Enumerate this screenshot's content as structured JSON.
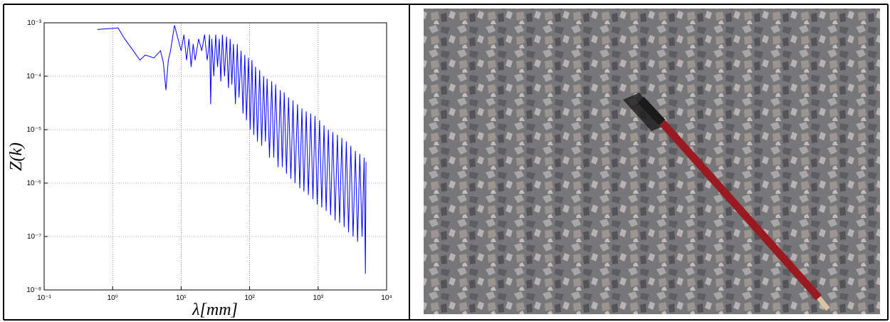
{
  "chart_data": {
    "type": "line",
    "x_label": "λ[mm]",
    "y_label": "Z(k)",
    "log_x": true,
    "log_y": true,
    "grid": true,
    "color": "#0000ff",
    "xlim": [
      0.1,
      10000
    ],
    "ylim": [
      1e-08,
      0.001
    ],
    "xticks": [
      {
        "value": 0.1,
        "label": "10⁻¹"
      },
      {
        "value": 1,
        "label": "10⁰"
      },
      {
        "value": 10,
        "label": "10¹"
      },
      {
        "value": 100,
        "label": "10²"
      },
      {
        "value": 1000,
        "label": "10³"
      },
      {
        "value": 10000,
        "label": "10⁴"
      }
    ],
    "yticks": [
      {
        "value": 1e-08,
        "label": "10⁻⁸"
      },
      {
        "value": 1e-07,
        "label": "10⁻⁷"
      },
      {
        "value": 1e-06,
        "label": "10⁻⁶"
      },
      {
        "value": 1e-05,
        "label": "10⁻⁵"
      },
      {
        "value": 0.0001,
        "label": "10⁻⁴"
      },
      {
        "value": 0.001,
        "label": "10⁻³"
      }
    ],
    "x": [
      0.6,
      1.2,
      1.5,
      2,
      2.5,
      3,
      4,
      5,
      5.5,
      6,
      6.5,
      7,
      8,
      9,
      10,
      11,
      12,
      13,
      14,
      15,
      16,
      18,
      20,
      22,
      24,
      25,
      26,
      27,
      28,
      30,
      32,
      34,
      36,
      38,
      40,
      43,
      46,
      49,
      52,
      55,
      58,
      62,
      66,
      70,
      75,
      80,
      85,
      90,
      96,
      102,
      108,
      115,
      122,
      130,
      140,
      150,
      160,
      170,
      180,
      195,
      210,
      225,
      240,
      260,
      280,
      300,
      320,
      345,
      370,
      400,
      430,
      460,
      500,
      540,
      580,
      620,
      670,
      720,
      780,
      840,
      900,
      970,
      1050,
      1130,
      1220,
      1310,
      1410,
      1520,
      1640,
      1770,
      1910,
      2060,
      2220,
      2400,
      2580,
      2780,
      3000,
      3240,
      3500,
      3770,
      4060,
      4380,
      4700,
      4900,
      5000
    ],
    "values": [
      0.00075,
      0.0008,
      0.0005,
      0.0003,
      0.0002,
      0.00025,
      0.00022,
      0.0003,
      0.00018,
      5.5e-05,
      0.0002,
      0.0003,
      0.0009,
      0.0005,
      0.0003,
      0.0006,
      0.0002,
      0.0005,
      0.00015,
      0.0004,
      0.0002,
      0.0005,
      0.0003,
      0.0006,
      0.0002,
      0.0003,
      0.0006,
      3e-05,
      0.0005,
      0.0001,
      0.0006,
      0.00015,
      0.0005,
      8e-05,
      0.0006,
      0.0001,
      0.00055,
      6e-05,
      0.0005,
      7e-05,
      0.0004,
      3e-05,
      0.0004,
      4e-05,
      0.0003,
      2e-05,
      0.00025,
      1.5e-05,
      0.00022,
      1e-05,
      0.0002,
      8e-06,
      0.00015,
      6e-06,
      0.00013,
      5e-06,
      0.0001,
      6e-06,
      9e-05,
      3e-06,
      8e-05,
      3e-06,
      7e-05,
      2e-06,
      5.5e-05,
      2e-06,
      5e-05,
      1.5e-06,
      4e-05,
      1.2e-06,
      3.5e-05,
      1e-06,
      3e-05,
      8e-07,
      2.5e-05,
      7e-07,
      2.2e-05,
      6e-07,
      2e-05,
      5e-07,
      1.8e-05,
      4e-07,
      1.5e-05,
      3.5e-07,
      1.2e-05,
      3e-07,
      1e-05,
      2.5e-07,
      9e-06,
      2e-07,
      8e-06,
      1.8e-07,
      7e-06,
      1.5e-07,
      6e-06,
      1.2e-07,
      5e-06,
      1e-07,
      4e-06,
      8e-08,
      3.5e-06,
      1e-07,
      3e-06,
      2e-08,
      2.5e-06
    ]
  }
}
